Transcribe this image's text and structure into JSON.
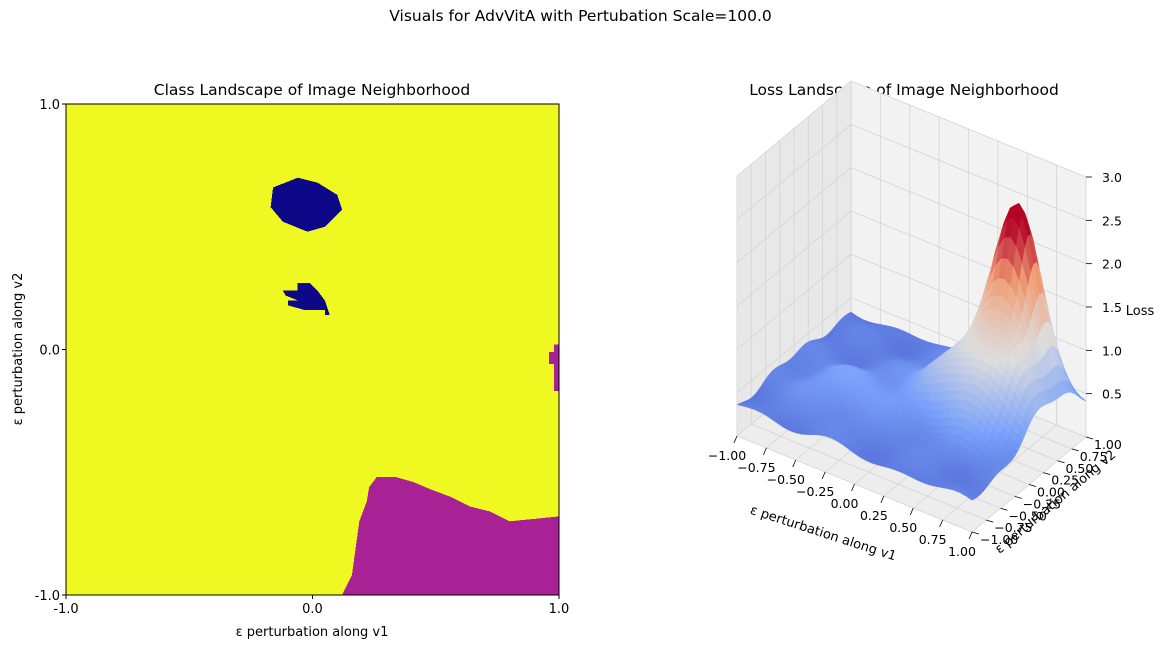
{
  "figure": {
    "suptitle": "Visuals for AdvVitA with Pertubation Scale=100.0"
  },
  "colors": {
    "class_yellow": "#eff821",
    "class_navy": "#0d0887",
    "class_magenta": "#a82296",
    "surface_low": "#4b63d9",
    "surface_high": "#c0282d",
    "pane_gray": "#f2f2f2"
  },
  "chart_data": [
    {
      "type": "heatmap",
      "title": "Class Landscape of Image Neighborhood",
      "xlabel": "ε perturbation along v1",
      "ylabel": "ε perturbation along v2",
      "xlim": [
        -1.0,
        1.0
      ],
      "ylim": [
        -1.0,
        1.0
      ],
      "xticks": [
        "-1.0",
        "0.0",
        "1.0"
      ],
      "yticks": [
        "-1.0",
        "0.0",
        "1.0"
      ],
      "background_class_color": "#eff821",
      "regions": [
        {
          "color": "#0d0887",
          "points": [
            [
              -0.16,
              0.66
            ],
            [
              -0.06,
              0.7
            ],
            [
              0.02,
              0.68
            ],
            [
              0.1,
              0.63
            ],
            [
              0.12,
              0.57
            ],
            [
              0.05,
              0.5
            ],
            [
              -0.02,
              0.48
            ],
            [
              -0.12,
              0.52
            ],
            [
              -0.17,
              0.58
            ]
          ]
        },
        {
          "color": "#0d0887",
          "points": [
            [
              -0.06,
              0.27
            ],
            [
              -0.01,
              0.27
            ],
            [
              0.02,
              0.24
            ],
            [
              0.05,
              0.2
            ],
            [
              0.07,
              0.14
            ],
            [
              0.05,
              0.14
            ],
            [
              0.05,
              0.16
            ],
            [
              -0.03,
              0.16
            ],
            [
              -0.1,
              0.18
            ],
            [
              -0.1,
              0.2
            ],
            [
              -0.06,
              0.2
            ],
            [
              -0.11,
              0.22
            ],
            [
              -0.12,
              0.24
            ],
            [
              -0.06,
              0.24
            ]
          ]
        },
        {
          "color": "#a82296",
          "points": [
            [
              0.98,
              0.02
            ],
            [
              1.0,
              0.02
            ],
            [
              1.0,
              -0.17
            ],
            [
              0.98,
              -0.17
            ],
            [
              0.98,
              -0.06
            ],
            [
              0.96,
              -0.06
            ],
            [
              0.96,
              -0.01
            ],
            [
              0.98,
              -0.01
            ]
          ]
        },
        {
          "color": "#a82296",
          "points": [
            [
              0.26,
              -0.52
            ],
            [
              0.34,
              -0.52
            ],
            [
              0.41,
              -0.54
            ],
            [
              0.48,
              -0.57
            ],
            [
              0.56,
              -0.6
            ],
            [
              0.64,
              -0.64
            ],
            [
              0.72,
              -0.66
            ],
            [
              0.8,
              -0.7
            ],
            [
              0.9,
              -0.69
            ],
            [
              1.0,
              -0.68
            ],
            [
              1.0,
              -1.0
            ],
            [
              0.12,
              -1.0
            ],
            [
              0.14,
              -0.96
            ],
            [
              0.16,
              -0.92
            ],
            [
              0.19,
              -0.7
            ],
            [
              0.22,
              -0.62
            ],
            [
              0.23,
              -0.56
            ]
          ]
        }
      ]
    },
    {
      "type": "surface3d",
      "title": "Loss Landscape of Image Neighborhood",
      "xlabel": "ε perturbation along v1",
      "ylabel": "ε perturbation along v2",
      "zlabel": "Loss",
      "xlim": [
        -1.0,
        1.0
      ],
      "ylim": [
        -1.0,
        1.0
      ],
      "zlim": [
        0.0,
        3.0
      ],
      "xticks": [
        "−1.00",
        "−0.75",
        "−0.50",
        "−0.25",
        "0.00",
        "0.25",
        "0.50",
        "0.75",
        "1.00"
      ],
      "yticks": [
        "−1.00",
        "−0.75",
        "−0.50",
        "−0.25",
        "0.00",
        "0.25",
        "0.50",
        "0.75",
        "1.00"
      ],
      "zticks": [
        "0.5",
        "1.0",
        "1.5",
        "2.0",
        "2.5",
        "3.0"
      ],
      "zrange": [
        0.0,
        2.4
      ],
      "grid": true,
      "colormap": "coolwarm",
      "peaks": [
        {
          "x": 0.55,
          "y": 0.75,
          "height": 1.9,
          "spread": 0.18
        },
        {
          "x": 0.55,
          "y": 0.25,
          "height": 1.0,
          "spread": 0.35
        },
        {
          "x": -0.4,
          "y": -0.3,
          "height": 0.25,
          "spread": 0.3
        }
      ],
      "base_level": 0.35
    }
  ]
}
